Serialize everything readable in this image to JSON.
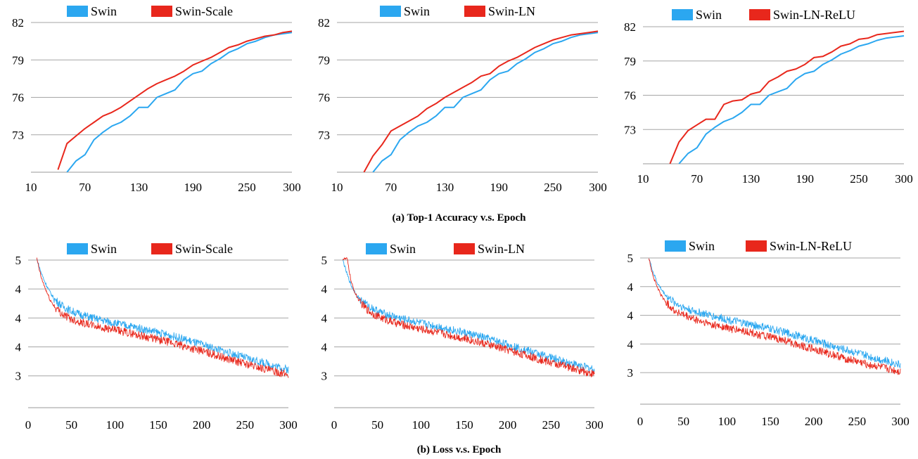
{
  "colors": {
    "swin": "#2ba7f0",
    "variant": "#e8271c",
    "grid": "#a6a6a6"
  },
  "captions": {
    "accuracy": "(a) Top-1 Accuracy v.s. Epoch",
    "loss": "(b) Loss v.s. Epoch"
  },
  "chart_data": [
    {
      "type": "line",
      "xlabel": "",
      "ylabel": "",
      "xlim": [
        10,
        300
      ],
      "ylim": [
        70,
        82
      ],
      "xticks": [
        10,
        70,
        130,
        190,
        250,
        300
      ],
      "xtick_labels": [
        "10",
        "70",
        "130",
        "190",
        "250",
        "300"
      ],
      "yticks": [
        73,
        76,
        79,
        82
      ],
      "ytick_labels": [
        "73",
        "76",
        "79",
        "82"
      ],
      "legend": "top",
      "grid": "horizontal",
      "series": [
        {
          "name": "Swin",
          "color": "#2ba7f0",
          "x": [
            50,
            60,
            70,
            80,
            90,
            100,
            110,
            120,
            130,
            140,
            150,
            160,
            170,
            180,
            190,
            200,
            210,
            220,
            230,
            240,
            250,
            260,
            270,
            280,
            290,
            300
          ],
          "y": [
            70.0,
            70.9,
            71.4,
            72.6,
            73.2,
            73.7,
            74.0,
            74.5,
            75.2,
            75.2,
            76.0,
            76.3,
            76.6,
            77.4,
            77.9,
            78.1,
            78.7,
            79.1,
            79.6,
            79.9,
            80.3,
            80.5,
            80.8,
            81.0,
            81.1,
            81.2
          ]
        },
        {
          "name": "Swin-Scale",
          "color": "#e8271c",
          "x": [
            40,
            50,
            60,
            70,
            80,
            90,
            100,
            110,
            120,
            130,
            140,
            150,
            160,
            170,
            180,
            190,
            200,
            210,
            220,
            230,
            240,
            250,
            260,
            270,
            280,
            290,
            300
          ],
          "y": [
            70.2,
            72.3,
            72.9,
            73.5,
            74.0,
            74.5,
            74.8,
            75.2,
            75.7,
            76.2,
            76.7,
            77.1,
            77.4,
            77.7,
            78.1,
            78.6,
            78.9,
            79.2,
            79.6,
            80.0,
            80.2,
            80.5,
            80.7,
            80.9,
            81.0,
            81.2,
            81.3
          ]
        }
      ]
    },
    {
      "type": "line",
      "xlabel": "",
      "ylabel": "",
      "xlim": [
        10,
        300
      ],
      "ylim": [
        70,
        82
      ],
      "xticks": [
        10,
        70,
        130,
        190,
        250,
        300
      ],
      "xtick_labels": [
        "10",
        "70",
        "130",
        "190",
        "250",
        "300"
      ],
      "yticks": [
        73,
        76,
        79,
        82
      ],
      "ytick_labels": [
        "73",
        "76",
        "79",
        "82"
      ],
      "legend": "top",
      "grid": "horizontal",
      "series": [
        {
          "name": "Swin",
          "color": "#2ba7f0",
          "x": [
            50,
            60,
            70,
            80,
            90,
            100,
            110,
            120,
            130,
            140,
            150,
            160,
            170,
            180,
            190,
            200,
            210,
            220,
            230,
            240,
            250,
            260,
            270,
            280,
            290,
            300
          ],
          "y": [
            70.0,
            70.9,
            71.4,
            72.6,
            73.2,
            73.7,
            74.0,
            74.5,
            75.2,
            75.2,
            76.0,
            76.3,
            76.6,
            77.4,
            77.9,
            78.1,
            78.7,
            79.1,
            79.6,
            79.9,
            80.3,
            80.5,
            80.8,
            81.0,
            81.1,
            81.2
          ]
        },
        {
          "name": "Swin-LN",
          "color": "#e8271c",
          "x": [
            40,
            50,
            60,
            70,
            80,
            90,
            100,
            110,
            120,
            130,
            140,
            150,
            160,
            170,
            180,
            190,
            200,
            210,
            220,
            230,
            240,
            250,
            260,
            270,
            280,
            290,
            300
          ],
          "y": [
            70.0,
            71.3,
            72.2,
            73.3,
            73.7,
            74.1,
            74.5,
            75.1,
            75.5,
            76.0,
            76.4,
            76.8,
            77.2,
            77.7,
            77.9,
            78.5,
            78.9,
            79.2,
            79.6,
            80.0,
            80.3,
            80.6,
            80.8,
            81.0,
            81.1,
            81.2,
            81.3
          ]
        }
      ]
    },
    {
      "type": "line",
      "xlabel": "",
      "ylabel": "",
      "xlim": [
        10,
        300
      ],
      "ylim": [
        70,
        82
      ],
      "xticks": [
        10,
        70,
        130,
        190,
        250,
        300
      ],
      "xtick_labels": [
        "10",
        "70",
        "130",
        "190",
        "250",
        "300"
      ],
      "yticks": [
        73,
        76,
        79,
        82
      ],
      "ytick_labels": [
        "73",
        "76",
        "79",
        "82"
      ],
      "legend": "top",
      "grid": "horizontal",
      "series": [
        {
          "name": "Swin",
          "color": "#2ba7f0",
          "x": [
            50,
            60,
            70,
            80,
            90,
            100,
            110,
            120,
            130,
            140,
            150,
            160,
            170,
            180,
            190,
            200,
            210,
            220,
            230,
            240,
            250,
            260,
            270,
            280,
            290,
            300
          ],
          "y": [
            70.0,
            70.9,
            71.4,
            72.6,
            73.2,
            73.7,
            74.0,
            74.5,
            75.2,
            75.2,
            76.0,
            76.3,
            76.6,
            77.4,
            77.9,
            78.1,
            78.7,
            79.1,
            79.6,
            79.9,
            80.3,
            80.5,
            80.8,
            81.0,
            81.1,
            81.2
          ]
        },
        {
          "name": "Swin-LN-ReLU",
          "color": "#e8271c",
          "x": [
            40,
            50,
            60,
            70,
            80,
            90,
            100,
            110,
            120,
            130,
            140,
            150,
            160,
            170,
            180,
            190,
            200,
            210,
            220,
            230,
            240,
            250,
            260,
            270,
            280,
            290,
            300
          ],
          "y": [
            70.0,
            71.9,
            72.9,
            73.4,
            73.9,
            73.9,
            75.2,
            75.5,
            75.6,
            76.1,
            76.3,
            77.2,
            77.6,
            78.1,
            78.3,
            78.7,
            79.3,
            79.4,
            79.8,
            80.3,
            80.5,
            80.9,
            81.0,
            81.3,
            81.4,
            81.5,
            81.6
          ]
        }
      ]
    },
    {
      "type": "line",
      "xlabel": "",
      "ylabel": "",
      "xlim": [
        0,
        300
      ],
      "ylim": [
        2.45,
        5.0
      ],
      "xticks": [
        0,
        50,
        100,
        150,
        200,
        250,
        300
      ],
      "xtick_labels": [
        "0",
        "50",
        "100",
        "150",
        "200",
        "250",
        "300"
      ],
      "yticks": [
        3.0,
        3.5,
        4.0,
        4.5,
        5.0
      ],
      "ytick_labels": [
        "3",
        "4",
        "4",
        "4",
        "5"
      ],
      "legend": "top",
      "grid": "horizontal",
      "noisy": true,
      "series": [
        {
          "name": "Swin",
          "color": "#2ba7f0",
          "x": [
            10,
            15,
            20,
            25,
            30,
            40,
            50,
            60,
            70,
            80,
            100,
            120,
            140,
            160,
            180,
            200,
            220,
            240,
            260,
            280,
            300
          ],
          "y": [
            5.02,
            4.78,
            4.6,
            4.45,
            4.33,
            4.2,
            4.12,
            4.06,
            4.02,
            3.98,
            3.91,
            3.85,
            3.78,
            3.71,
            3.63,
            3.54,
            3.45,
            3.36,
            3.27,
            3.19,
            3.11
          ]
        },
        {
          "name": "Swin-Scale",
          "color": "#e8271c",
          "x": [
            10,
            15,
            20,
            25,
            30,
            40,
            50,
            60,
            70,
            80,
            100,
            120,
            140,
            160,
            180,
            200,
            220,
            240,
            260,
            280,
            300
          ],
          "y": [
            5.02,
            4.7,
            4.5,
            4.32,
            4.2,
            4.06,
            3.98,
            3.93,
            3.89,
            3.85,
            3.79,
            3.73,
            3.66,
            3.59,
            3.51,
            3.43,
            3.34,
            3.25,
            3.17,
            3.09,
            3.02
          ]
        }
      ]
    },
    {
      "type": "line",
      "xlabel": "",
      "ylabel": "",
      "xlim": [
        0,
        300
      ],
      "ylim": [
        2.45,
        5.0
      ],
      "xticks": [
        0,
        50,
        100,
        150,
        200,
        250,
        300
      ],
      "xtick_labels": [
        "0",
        "50",
        "100",
        "150",
        "200",
        "250",
        "300"
      ],
      "yticks": [
        3.0,
        3.5,
        4.0,
        4.5,
        5.0
      ],
      "ytick_labels": [
        "3",
        "4",
        "4",
        "4",
        "5"
      ],
      "legend": "top",
      "grid": "horizontal",
      "noisy": true,
      "series": [
        {
          "name": "Swin",
          "color": "#2ba7f0",
          "x": [
            10,
            15,
            20,
            25,
            30,
            40,
            50,
            60,
            70,
            80,
            100,
            120,
            140,
            160,
            180,
            200,
            220,
            240,
            260,
            280,
            300
          ],
          "y": [
            5.0,
            4.75,
            4.55,
            4.42,
            4.32,
            4.2,
            4.12,
            4.06,
            4.02,
            3.98,
            3.91,
            3.85,
            3.78,
            3.71,
            3.63,
            3.54,
            3.45,
            3.36,
            3.27,
            3.19,
            3.11
          ]
        },
        {
          "name": "Swin-LN",
          "color": "#e8271c",
          "x": [
            10,
            15,
            20,
            25,
            30,
            40,
            50,
            60,
            70,
            80,
            100,
            120,
            140,
            160,
            180,
            200,
            220,
            240,
            260,
            280,
            300
          ],
          "y": [
            5.02,
            5.02,
            4.6,
            4.4,
            4.27,
            4.12,
            4.03,
            3.97,
            3.92,
            3.88,
            3.81,
            3.75,
            3.68,
            3.61,
            3.53,
            3.45,
            3.36,
            3.27,
            3.19,
            3.11,
            3.03
          ]
        }
      ]
    },
    {
      "type": "line",
      "xlabel": "",
      "ylabel": "",
      "xlim": [
        0,
        300
      ],
      "ylim": [
        2.45,
        5.0
      ],
      "xticks": [
        0,
        50,
        100,
        150,
        200,
        250,
        300
      ],
      "xtick_labels": [
        "0",
        "50",
        "100",
        "150",
        "200",
        "250",
        "300"
      ],
      "yticks": [
        3.0,
        3.5,
        4.0,
        4.5,
        5.0
      ],
      "ytick_labels": [
        "3",
        "4",
        "4",
        "4",
        "5"
      ],
      "legend": "top",
      "grid": "horizontal",
      "noisy": true,
      "series": [
        {
          "name": "Swin",
          "color": "#2ba7f0",
          "x": [
            10,
            15,
            20,
            25,
            30,
            40,
            50,
            60,
            70,
            80,
            100,
            120,
            140,
            160,
            180,
            200,
            220,
            240,
            260,
            280,
            300
          ],
          "y": [
            5.0,
            4.75,
            4.56,
            4.44,
            4.34,
            4.22,
            4.14,
            4.08,
            4.04,
            4.0,
            3.93,
            3.86,
            3.8,
            3.73,
            3.65,
            3.56,
            3.47,
            3.39,
            3.3,
            3.22,
            3.14
          ]
        },
        {
          "name": "Swin-LN-ReLU",
          "color": "#e8271c",
          "x": [
            10,
            15,
            20,
            25,
            30,
            40,
            50,
            60,
            70,
            80,
            100,
            120,
            140,
            160,
            180,
            200,
            220,
            240,
            260,
            280,
            300
          ],
          "y": [
            5.0,
            4.68,
            4.48,
            4.33,
            4.22,
            4.08,
            4.0,
            3.94,
            3.89,
            3.85,
            3.78,
            3.72,
            3.65,
            3.58,
            3.5,
            3.41,
            3.32,
            3.23,
            3.15,
            3.08,
            3.01
          ]
        }
      ]
    }
  ]
}
